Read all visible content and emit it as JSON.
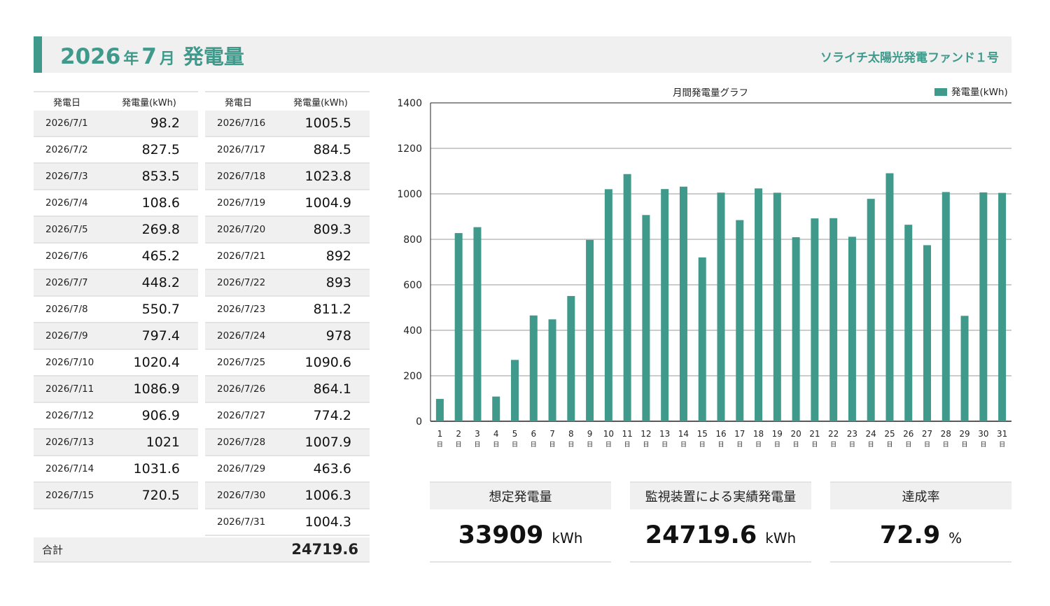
{
  "header": {
    "year": "2026",
    "year_suffix": "年",
    "month": "7",
    "month_suffix": "月",
    "title": "発電量",
    "fund_name": "ソライチ太陽光発電ファンド１号",
    "accent_color": "#3f9a8c"
  },
  "table": {
    "col_date": "発電日",
    "col_value": "発電量(kWh)",
    "left_rows": [
      {
        "date": "2026/7/1",
        "value": "98.2"
      },
      {
        "date": "2026/7/2",
        "value": "827.5"
      },
      {
        "date": "2026/7/3",
        "value": "853.5"
      },
      {
        "date": "2026/7/4",
        "value": "108.6"
      },
      {
        "date": "2026/7/5",
        "value": "269.8"
      },
      {
        "date": "2026/7/6",
        "value": "465.2"
      },
      {
        "date": "2026/7/7",
        "value": "448.2"
      },
      {
        "date": "2026/7/8",
        "value": "550.7"
      },
      {
        "date": "2026/7/9",
        "value": "797.4"
      },
      {
        "date": "2026/7/10",
        "value": "1020.4"
      },
      {
        "date": "2026/7/11",
        "value": "1086.9"
      },
      {
        "date": "2026/7/12",
        "value": "906.9"
      },
      {
        "date": "2026/7/13",
        "value": "1021"
      },
      {
        "date": "2026/7/14",
        "value": "1031.6"
      },
      {
        "date": "2026/7/15",
        "value": "720.5"
      }
    ],
    "right_rows": [
      {
        "date": "2026/7/16",
        "value": "1005.5"
      },
      {
        "date": "2026/7/17",
        "value": "884.5"
      },
      {
        "date": "2026/7/18",
        "value": "1023.8"
      },
      {
        "date": "2026/7/19",
        "value": "1004.9"
      },
      {
        "date": "2026/7/20",
        "value": "809.3"
      },
      {
        "date": "2026/7/21",
        "value": "892"
      },
      {
        "date": "2026/7/22",
        "value": "893"
      },
      {
        "date": "2026/7/23",
        "value": "811.2"
      },
      {
        "date": "2026/7/24",
        "value": "978"
      },
      {
        "date": "2026/7/25",
        "value": "1090.6"
      },
      {
        "date": "2026/7/26",
        "value": "864.1"
      },
      {
        "date": "2026/7/27",
        "value": "774.2"
      },
      {
        "date": "2026/7/28",
        "value": "1007.9"
      },
      {
        "date": "2026/7/29",
        "value": "463.6"
      },
      {
        "date": "2026/7/30",
        "value": "1006.3"
      },
      {
        "date": "2026/7/31",
        "value": "1004.3"
      }
    ],
    "total_label": "合計",
    "total_value": "24719.6"
  },
  "chart_data": {
    "type": "bar",
    "title": "月間発電量グラフ",
    "legend": "発電量(kWh)",
    "legend_position": "top-right",
    "day_suffix": "日",
    "categories": [
      "1",
      "2",
      "3",
      "4",
      "5",
      "6",
      "7",
      "8",
      "9",
      "10",
      "11",
      "12",
      "13",
      "14",
      "15",
      "16",
      "17",
      "18",
      "19",
      "20",
      "21",
      "22",
      "23",
      "24",
      "25",
      "26",
      "27",
      "28",
      "29",
      "30",
      "31"
    ],
    "values": [
      98.2,
      827.5,
      853.5,
      108.6,
      269.8,
      465.2,
      448.2,
      550.7,
      797.4,
      1020.4,
      1086.9,
      906.9,
      1021,
      1031.6,
      720.5,
      1005.5,
      884.5,
      1023.8,
      1004.9,
      809.3,
      892,
      893,
      811.2,
      978,
      1090.6,
      864.1,
      774.2,
      1007.9,
      463.6,
      1006.3,
      1004.3
    ],
    "ylim": [
      0,
      1400
    ],
    "yticks": [
      0,
      200,
      400,
      600,
      800,
      1000,
      1200,
      1400
    ],
    "grid": true,
    "bar_color": "#3f9a8c"
  },
  "kpis": [
    {
      "label": "想定発電量",
      "value": "33909",
      "unit": "kWh"
    },
    {
      "label": "監視装置による実績発電量",
      "value": "24719.6",
      "unit": "kWh"
    },
    {
      "label": "達成率",
      "value": "72.9",
      "unit": "%"
    }
  ]
}
